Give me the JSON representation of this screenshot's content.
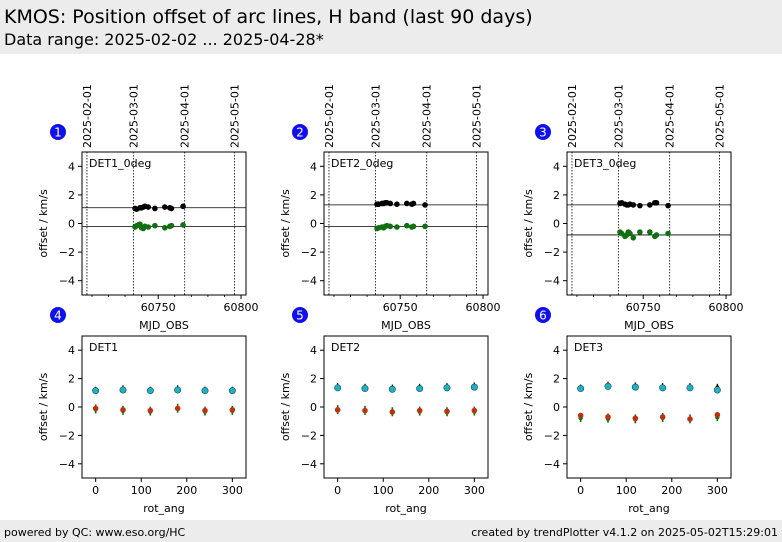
{
  "header": {
    "title": "KMOS: Position offset of arc lines, H band (last 90 days)",
    "subtitle": "Data range: 2025-02-02 ... 2025-04-28*"
  },
  "footer": {
    "left": "powered by QC: www.eso.org/HC",
    "right": "created by trendPlotter v4.1.2 on 2025-05-02T15:29:01"
  },
  "colors": {
    "black_series": "#000000",
    "green_series": "#107010",
    "cyan_series": "#20b0c0",
    "red_series": "#c03010",
    "badge": "#1010ee"
  },
  "chart_data": [
    {
      "type": "scatter",
      "badge": "1",
      "label": "DET1_0deg",
      "xlabel": "MJD_OBS",
      "ylabel": "offset / km/s",
      "xlim": [
        60704,
        60803
      ],
      "ylim": [
        -5,
        5
      ],
      "xticks": [
        60750,
        60800
      ],
      "yticks": [
        -4,
        -2,
        0,
        2,
        4
      ],
      "date_markers": [
        {
          "label": "2025-02-01",
          "x": 60707
        },
        {
          "label": "2025-03-01",
          "x": 60735
        },
        {
          "label": "2025-04-01",
          "x": 60766
        },
        {
          "label": "2025-05-01",
          "x": 60796
        }
      ],
      "hlines": [
        1.1,
        -0.2
      ],
      "series": [
        {
          "color": "black",
          "x": [
            60736,
            60737,
            60739,
            60740,
            60741,
            60742,
            60744,
            60748,
            60754,
            60757,
            60758,
            60765
          ],
          "y": [
            1.05,
            1.0,
            1.1,
            1.1,
            1.15,
            1.2,
            1.15,
            1.05,
            1.15,
            1.1,
            1.05,
            1.2
          ]
        },
        {
          "color": "green",
          "x": [
            60736,
            60737,
            60738,
            60739,
            60740,
            60741,
            60742,
            60744,
            60748,
            60754,
            60757,
            60758,
            60765
          ],
          "y": [
            -0.25,
            -0.15,
            -0.1,
            -0.05,
            -0.3,
            -0.35,
            -0.2,
            -0.25,
            -0.15,
            -0.3,
            -0.2,
            -0.15,
            -0.1
          ]
        }
      ]
    },
    {
      "type": "scatter",
      "badge": "2",
      "label": "DET2_0deg",
      "xlabel": "MJD_OBS",
      "ylabel": "offset / km/s",
      "xlim": [
        60704,
        60803
      ],
      "ylim": [
        -5,
        5
      ],
      "xticks": [
        60750,
        60800
      ],
      "yticks": [
        -4,
        -2,
        0,
        2,
        4
      ],
      "date_markers": [
        {
          "label": "2025-02-01",
          "x": 60707
        },
        {
          "label": "2025-03-01",
          "x": 60735
        },
        {
          "label": "2025-04-01",
          "x": 60766
        },
        {
          "label": "2025-05-01",
          "x": 60796
        }
      ],
      "hlines": [
        1.3,
        -0.2
      ],
      "series": [
        {
          "color": "black",
          "x": [
            60736,
            60737,
            60739,
            60740,
            60741,
            60742,
            60744,
            60748,
            60754,
            60757,
            60758,
            60765
          ],
          "y": [
            1.35,
            1.35,
            1.4,
            1.4,
            1.45,
            1.45,
            1.4,
            1.35,
            1.4,
            1.35,
            1.4,
            1.3
          ]
        },
        {
          "color": "green",
          "x": [
            60736,
            60737,
            60739,
            60740,
            60741,
            60742,
            60744,
            60748,
            60754,
            60757,
            60758,
            60765
          ],
          "y": [
            -0.35,
            -0.3,
            -0.25,
            -0.3,
            -0.2,
            -0.15,
            -0.2,
            -0.25,
            -0.15,
            -0.25,
            -0.2,
            -0.2
          ]
        }
      ]
    },
    {
      "type": "scatter",
      "badge": "3",
      "label": "DET3_0deg",
      "xlabel": "MJD_OBS",
      "ylabel": "offset / km/s",
      "xlim": [
        60704,
        60803
      ],
      "ylim": [
        -5,
        5
      ],
      "xticks": [
        60750,
        60800
      ],
      "yticks": [
        -4,
        -2,
        0,
        2,
        4
      ],
      "date_markers": [
        {
          "label": "2025-02-01",
          "x": 60707
        },
        {
          "label": "2025-03-01",
          "x": 60735
        },
        {
          "label": "2025-04-01",
          "x": 60766
        },
        {
          "label": "2025-05-01",
          "x": 60796
        }
      ],
      "hlines": [
        1.3,
        -0.8
      ],
      "series": [
        {
          "color": "black",
          "x": [
            60736,
            60737,
            60739,
            60740,
            60741,
            60742,
            60744,
            60748,
            60754,
            60757,
            60758,
            60765
          ],
          "y": [
            1.4,
            1.45,
            1.35,
            1.3,
            1.3,
            1.35,
            1.3,
            1.25,
            1.3,
            1.45,
            1.45,
            1.25
          ]
        },
        {
          "color": "green",
          "x": [
            60736,
            60737,
            60739,
            60740,
            60741,
            60742,
            60744,
            60748,
            60754,
            60757,
            60758,
            60765
          ],
          "y": [
            -0.6,
            -0.7,
            -0.9,
            -0.8,
            -0.6,
            -0.7,
            -1.0,
            -0.6,
            -0.6,
            -0.9,
            -0.8,
            -0.7
          ]
        }
      ]
    },
    {
      "type": "scatter",
      "badge": "4",
      "label": "DET1",
      "xlabel": "rot_ang",
      "ylabel": "offset / km/s",
      "xlim": [
        -30,
        330
      ],
      "ylim": [
        -5,
        5
      ],
      "xticks": [
        0,
        100,
        200,
        300
      ],
      "yticks": [
        -4,
        -2,
        0,
        2,
        4
      ],
      "series": [
        {
          "color": "black",
          "x": [
            0,
            60,
            120,
            180,
            240,
            300
          ],
          "y": [
            1.15,
            1.25,
            1.15,
            1.25,
            1.15,
            1.15
          ]
        },
        {
          "color": "cyan",
          "x": [
            0,
            60,
            120,
            180,
            240,
            300
          ],
          "y": [
            1.15,
            1.2,
            1.15,
            1.2,
            1.15,
            1.15
          ]
        },
        {
          "color": "green",
          "x": [
            0,
            60,
            120,
            180,
            240,
            300
          ],
          "y": [
            -0.1,
            -0.2,
            -0.25,
            -0.05,
            -0.25,
            -0.2
          ]
        },
        {
          "color": "red",
          "x": [
            0,
            60,
            120,
            180,
            240,
            300
          ],
          "y": [
            -0.1,
            -0.2,
            -0.25,
            -0.1,
            -0.25,
            -0.2
          ]
        }
      ]
    },
    {
      "type": "scatter",
      "badge": "5",
      "label": "DET2",
      "xlabel": "rot_ang",
      "ylabel": "offset / km/s",
      "xlim": [
        -30,
        330
      ],
      "ylim": [
        -5,
        5
      ],
      "xticks": [
        0,
        100,
        200,
        300
      ],
      "yticks": [
        -4,
        -2,
        0,
        2,
        4
      ],
      "series": [
        {
          "color": "black",
          "x": [
            0,
            60,
            120,
            180,
            240,
            300
          ],
          "y": [
            1.4,
            1.35,
            1.3,
            1.35,
            1.4,
            1.45
          ]
        },
        {
          "color": "cyan",
          "x": [
            0,
            60,
            120,
            180,
            240,
            300
          ],
          "y": [
            1.35,
            1.3,
            1.25,
            1.3,
            1.35,
            1.4
          ]
        },
        {
          "color": "green",
          "x": [
            0,
            60,
            120,
            180,
            240,
            300
          ],
          "y": [
            -0.15,
            -0.2,
            -0.3,
            -0.25,
            -0.3,
            -0.25
          ]
        },
        {
          "color": "red",
          "x": [
            0,
            60,
            120,
            180,
            240,
            300
          ],
          "y": [
            -0.2,
            -0.25,
            -0.35,
            -0.25,
            -0.3,
            -0.25
          ]
        }
      ]
    },
    {
      "type": "scatter",
      "badge": "6",
      "label": "DET3",
      "xlabel": "rot_ang",
      "ylabel": "offset / km/s",
      "xlim": [
        -30,
        330
      ],
      "ylim": [
        -5,
        5
      ],
      "xticks": [
        0,
        100,
        200,
        300
      ],
      "yticks": [
        -4,
        -2,
        0,
        2,
        4
      ],
      "series": [
        {
          "color": "black",
          "x": [
            0,
            60,
            120,
            180,
            240,
            300
          ],
          "y": [
            1.3,
            1.5,
            1.45,
            1.4,
            1.4,
            1.35
          ]
        },
        {
          "color": "cyan",
          "x": [
            0,
            60,
            120,
            180,
            240,
            300
          ],
          "y": [
            1.3,
            1.45,
            1.4,
            1.35,
            1.35,
            1.2
          ]
        },
        {
          "color": "green",
          "x": [
            0,
            60,
            120,
            180,
            240,
            300
          ],
          "y": [
            -0.7,
            -0.75,
            -0.8,
            -0.7,
            -0.8,
            -0.65
          ]
        },
        {
          "color": "red",
          "x": [
            0,
            60,
            120,
            180,
            240,
            300
          ],
          "y": [
            -0.6,
            -0.7,
            -0.8,
            -0.7,
            -0.85,
            -0.55
          ]
        }
      ]
    }
  ]
}
